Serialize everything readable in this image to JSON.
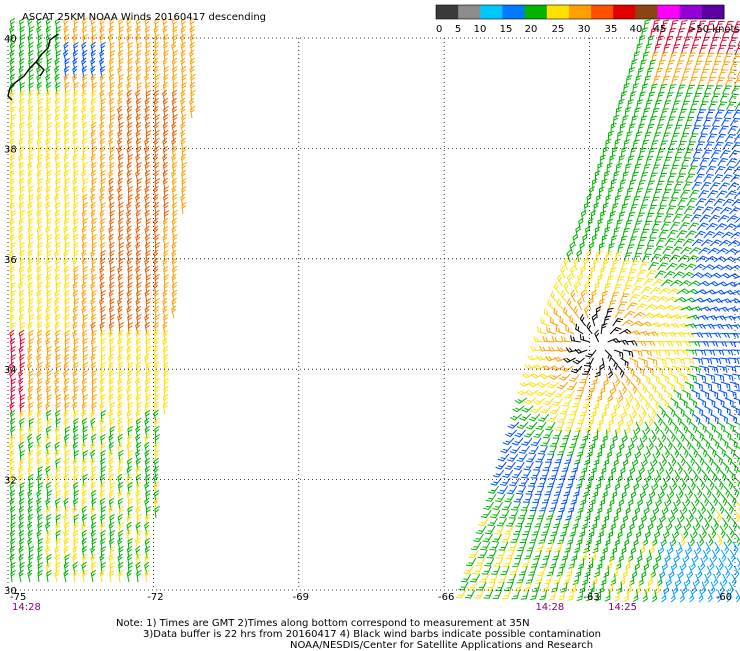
{
  "title": "ASCAT 25KM NOAA Winds 20160417 descending",
  "legend": {
    "labels": [
      "0",
      "5",
      "10",
      "15",
      "20",
      "25",
      "30",
      "35",
      "40",
      "45",
      ">50 knots"
    ],
    "colors": [
      "#3a3a3a",
      "#8c8c8c",
      "#00c8ff",
      "#0078ff",
      "#00b400",
      "#ffe000",
      "#ffa000",
      "#ff5000",
      "#e00000",
      "#8b4513",
      "#ff00ff",
      "#9400d3",
      "#5a00a0"
    ]
  },
  "map": {
    "lon_range": [
      -75,
      -60
    ],
    "lat_range": [
      30,
      40
    ],
    "lon_ticks": [
      "-75",
      "-72",
      "-69",
      "-66",
      "-63",
      "-60"
    ],
    "lat_ticks": [
      "40",
      "38",
      "36",
      "34",
      "32",
      "30"
    ],
    "pass_times": [
      {
        "label": "14:28",
        "lon": -75
      },
      {
        "label": "14:28",
        "lon": -64.2
      },
      {
        "label": "14:25",
        "lon": -62.7
      }
    ]
  },
  "notes": {
    "line1": "Note: 1) Times are GMT 2)Times along bottom correspond to measurement at 35N",
    "line2": "3)Data buffer is 22 hrs from 20160417 4) Black wind barbs indicate possible contamination",
    "line3": "NOAA/NESDIS/Center for Satellite Applications and Research"
  }
}
